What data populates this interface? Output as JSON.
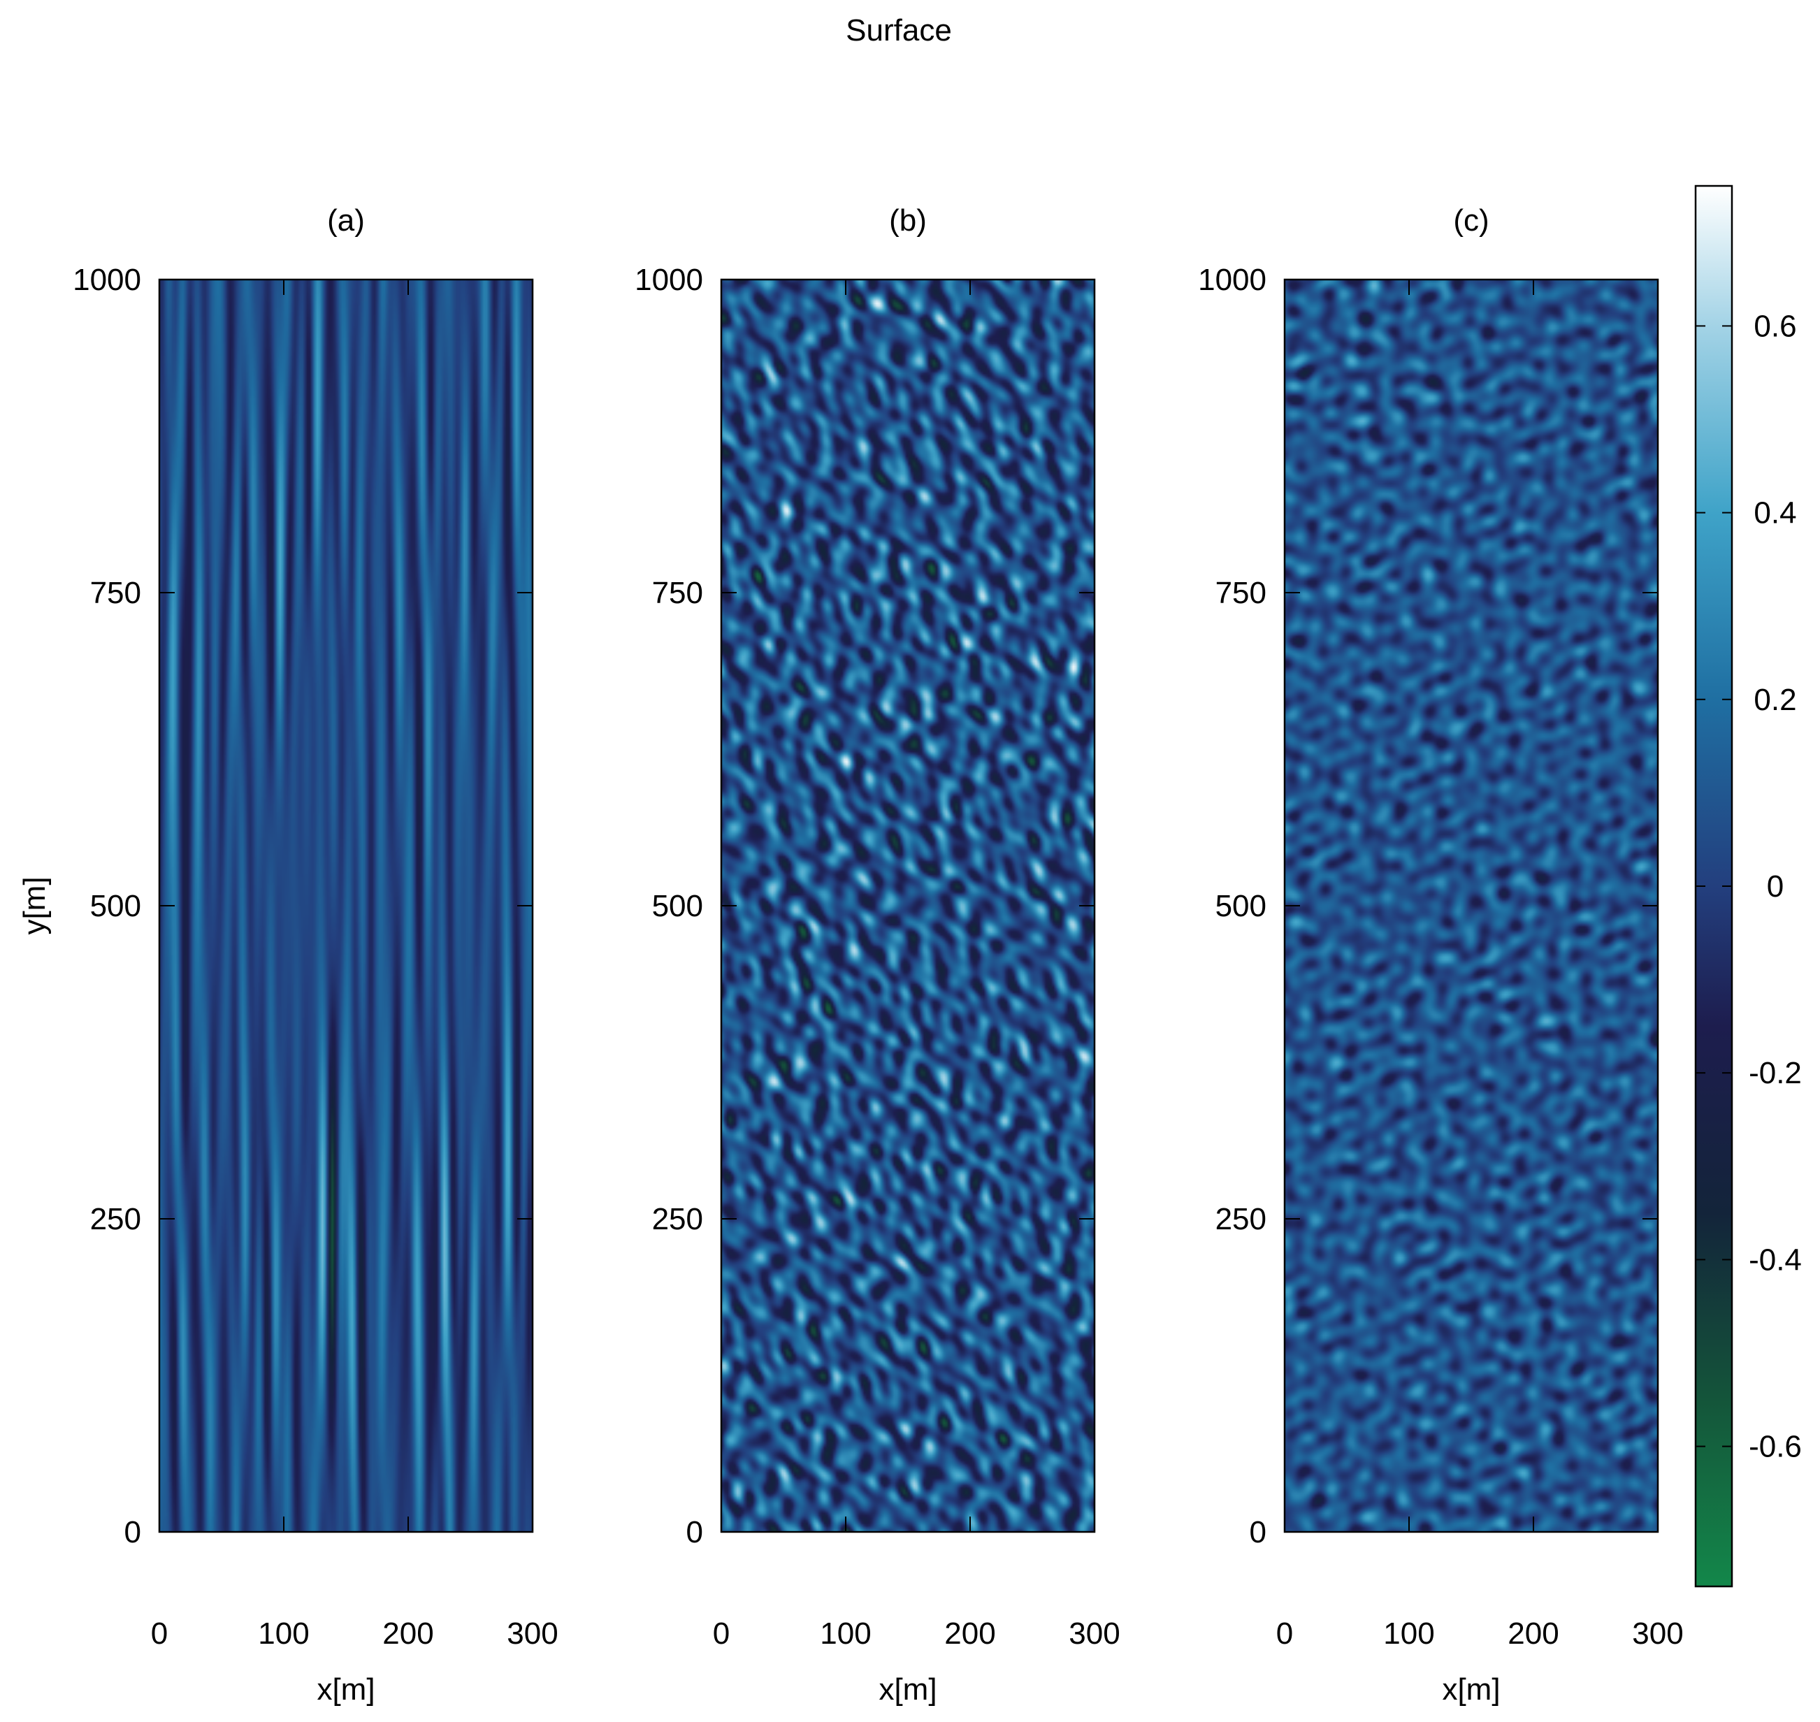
{
  "figure": {
    "title": "Surface"
  },
  "colorbar": {
    "min": -0.75,
    "max": 0.75,
    "ticks": [
      -0.6,
      -0.4,
      -0.2,
      0,
      0.2,
      0.4,
      0.6
    ],
    "tick_labels": [
      "-0.6",
      "-0.4",
      "-0.2",
      "0",
      "0.2",
      "0.4",
      "0.6"
    ],
    "stops": [
      {
        "value": -0.75,
        "color": "#13874a"
      },
      {
        "value": -0.55,
        "color": "#14553a"
      },
      {
        "value": -0.35,
        "color": "#13243a"
      },
      {
        "value": -0.15,
        "color": "#1d1d4e"
      },
      {
        "value": 0.0,
        "color": "#233f7e"
      },
      {
        "value": 0.2,
        "color": "#1f6fa2"
      },
      {
        "value": 0.4,
        "color": "#3fa3c8"
      },
      {
        "value": 0.6,
        "color": "#a3d3e6"
      },
      {
        "value": 0.75,
        "color": "#ffffff"
      }
    ]
  },
  "chart_data": [
    {
      "type": "heatmap",
      "title": "(a)",
      "xlabel": "x[m]",
      "ylabel": "y[m]",
      "xlim": [
        0,
        300
      ],
      "ylim": [
        0,
        1000
      ],
      "xticks": [
        0,
        100,
        200,
        300
      ],
      "xtick_labels": [
        "0",
        "100",
        "200",
        "300"
      ],
      "yticks": [
        0,
        250,
        500,
        750,
        1000
      ],
      "ytick_labels": [
        "0",
        "250",
        "500",
        "750",
        "1000"
      ],
      "pattern": "long-crested"
    },
    {
      "type": "heatmap",
      "title": "(b)",
      "xlabel": "x[m]",
      "ylabel": "",
      "xlim": [
        0,
        300
      ],
      "ylim": [
        0,
        1000
      ],
      "xticks": [
        0,
        100,
        200,
        300
      ],
      "xtick_labels": [
        "0",
        "100",
        "200",
        "300"
      ],
      "yticks": [
        0,
        250,
        500,
        750,
        1000
      ],
      "ytick_labels": [
        "0",
        "250",
        "500",
        "750",
        "1000"
      ],
      "pattern": "short-crested"
    },
    {
      "type": "heatmap",
      "title": "(c)",
      "xlabel": "x[m]",
      "ylabel": "",
      "xlim": [
        0,
        300
      ],
      "ylim": [
        0,
        1000
      ],
      "xticks": [
        0,
        100,
        200,
        300
      ],
      "xtick_labels": [
        "0",
        "100",
        "200",
        "300"
      ],
      "yticks": [
        0,
        250,
        500,
        750,
        1000
      ],
      "ytick_labels": [
        "0",
        "250",
        "500",
        "750",
        "1000"
      ],
      "pattern": "multidirectional"
    }
  ]
}
